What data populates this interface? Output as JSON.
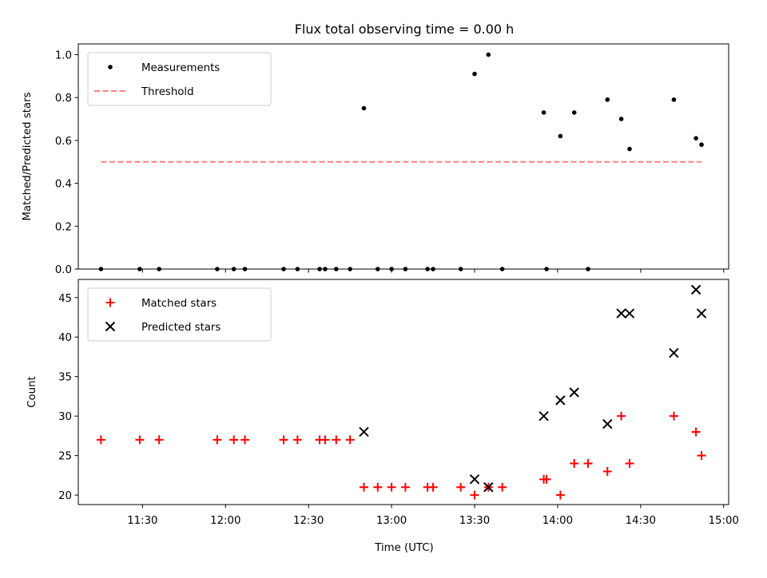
{
  "title": "Flux total observing time = 0.00 h",
  "xlabel": "Time (UTC)",
  "x_ticks": [
    "11:30",
    "12:00",
    "12:30",
    "13:00",
    "13:30",
    "14:00",
    "14:30",
    "15:00"
  ],
  "chart_data": [
    {
      "type": "scatter",
      "ylabel": "Matched/Predicted stars",
      "ylim": [
        0,
        1.05
      ],
      "y_ticks": [
        "0.0",
        "0.2",
        "0.4",
        "0.6",
        "0.8",
        "1.0"
      ],
      "legend_position": "top-left",
      "grid": false,
      "series": [
        {
          "name": "Measurements",
          "color": "#000000",
          "marker": "dot",
          "points": [
            [
              "11:15",
              0
            ],
            [
              "11:29",
              0
            ],
            [
              "11:36",
              0
            ],
            [
              "11:57",
              0
            ],
            [
              "12:03",
              0
            ],
            [
              "12:07",
              0
            ],
            [
              "12:21",
              0
            ],
            [
              "12:26",
              0
            ],
            [
              "12:34",
              0
            ],
            [
              "12:36",
              0
            ],
            [
              "12:40",
              0
            ],
            [
              "12:45",
              0
            ],
            [
              "12:50",
              0.75
            ],
            [
              "12:55",
              0
            ],
            [
              "13:00",
              0
            ],
            [
              "13:05",
              0
            ],
            [
              "13:13",
              0
            ],
            [
              "13:15",
              0
            ],
            [
              "13:25",
              0
            ],
            [
              "13:30",
              0.91
            ],
            [
              "13:35",
              1.0
            ],
            [
              "13:40",
              0
            ],
            [
              "13:55",
              0.73
            ],
            [
              "13:56",
              0
            ],
            [
              "14:01",
              0.62
            ],
            [
              "14:06",
              0.73
            ],
            [
              "14:11",
              0
            ],
            [
              "14:18",
              0.79
            ],
            [
              "14:23",
              0.7
            ],
            [
              "14:26",
              0.56
            ],
            [
              "14:42",
              0.79
            ],
            [
              "14:50",
              0.61
            ],
            [
              "14:52",
              0.58
            ]
          ]
        },
        {
          "name": "Threshold",
          "color": "#ff7f7f",
          "style": "dashed-line",
          "points": [
            [
              "11:15",
              0.5
            ],
            [
              "14:52",
              0.5
            ]
          ]
        }
      ]
    },
    {
      "type": "scatter",
      "ylabel": "Count",
      "ylim": [
        18.8,
        47.3
      ],
      "y_ticks": [
        "20",
        "25",
        "30",
        "35",
        "40",
        "45"
      ],
      "legend_position": "top-left",
      "grid": false,
      "series": [
        {
          "name": "Matched stars",
          "color": "#ff0000",
          "marker": "plus",
          "points": [
            [
              "11:15",
              27
            ],
            [
              "11:29",
              27
            ],
            [
              "11:36",
              27
            ],
            [
              "11:57",
              27
            ],
            [
              "12:03",
              27
            ],
            [
              "12:07",
              27
            ],
            [
              "12:21",
              27
            ],
            [
              "12:26",
              27
            ],
            [
              "12:34",
              27
            ],
            [
              "12:36",
              27
            ],
            [
              "12:40",
              27
            ],
            [
              "12:45",
              27
            ],
            [
              "12:50",
              21
            ],
            [
              "12:55",
              21
            ],
            [
              "13:00",
              21
            ],
            [
              "13:05",
              21
            ],
            [
              "13:13",
              21
            ],
            [
              "13:15",
              21
            ],
            [
              "13:25",
              21
            ],
            [
              "13:30",
              20
            ],
            [
              "13:35",
              21
            ],
            [
              "13:40",
              21
            ],
            [
              "13:55",
              22
            ],
            [
              "13:56",
              22
            ],
            [
              "14:01",
              20
            ],
            [
              "14:06",
              24
            ],
            [
              "14:11",
              24
            ],
            [
              "14:18",
              23
            ],
            [
              "14:23",
              30
            ],
            [
              "14:26",
              24
            ],
            [
              "14:42",
              30
            ],
            [
              "14:50",
              28
            ],
            [
              "14:52",
              25
            ]
          ]
        },
        {
          "name": "Predicted stars",
          "color": "#000000",
          "marker": "x",
          "points": [
            [
              "12:50",
              28
            ],
            [
              "13:30",
              22
            ],
            [
              "13:35",
              21
            ],
            [
              "13:55",
              30
            ],
            [
              "14:01",
              32
            ],
            [
              "14:06",
              33
            ],
            [
              "14:18",
              29
            ],
            [
              "14:23",
              43
            ],
            [
              "14:26",
              43
            ],
            [
              "14:42",
              38
            ],
            [
              "14:50",
              46
            ],
            [
              "14:52",
              43
            ]
          ]
        }
      ]
    }
  ]
}
